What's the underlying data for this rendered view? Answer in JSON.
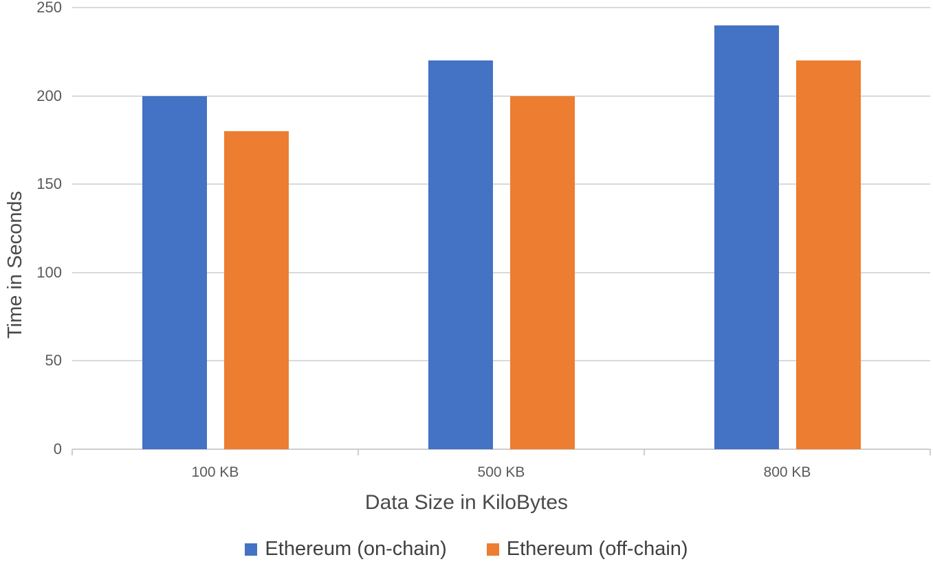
{
  "chart_data": {
    "type": "bar",
    "title": "",
    "categories": [
      "100 KB",
      "500 KB",
      "800 KB"
    ],
    "series": [
      {
        "name": "Ethereum (on-chain)",
        "color": "#4472C4",
        "values": [
          200,
          220,
          240
        ]
      },
      {
        "name": "Ethereum (off-chain)",
        "color": "#ED7D31",
        "values": [
          180,
          200,
          220
        ]
      }
    ],
    "xlabel": "Data Size in KiloBytes",
    "ylabel": "Time in Seconds",
    "ylim": [
      0,
      250
    ],
    "yticks": [
      0,
      50,
      100,
      150,
      200,
      250
    ],
    "grid": "horizontal",
    "legend_position": "bottom"
  },
  "colors": {
    "background": "#FFFFFF",
    "gridline": "#D9D9D9",
    "axis_line": "#CFCDCD",
    "tick_text": "#595959",
    "title_text": "#4A4A4A",
    "legend_text": "#404040",
    "series_blue": "#4472C4",
    "series_orange": "#ED7D31"
  }
}
